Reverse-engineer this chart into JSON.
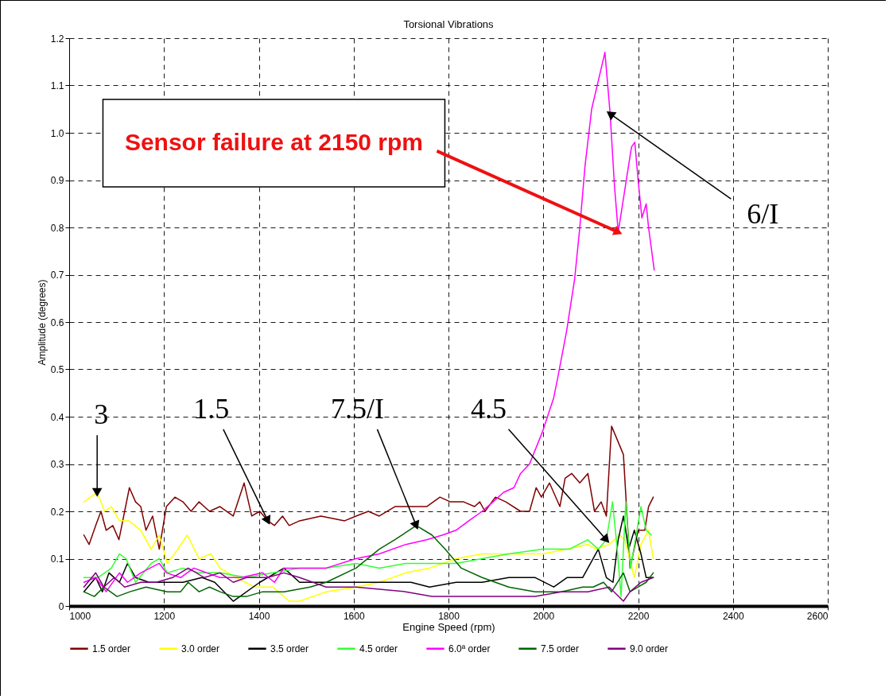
{
  "chart_data": {
    "type": "line",
    "title": "Torsional Vibrations",
    "xlabel": "Engine Speed (rpm)",
    "ylabel": "Amplitude (degrees)",
    "xlim": [
      1000,
      2600
    ],
    "xticks": [
      1000,
      1200,
      1400,
      1600,
      1800,
      2000,
      2200,
      2400,
      2600
    ],
    "ylim": [
      0,
      1.2
    ],
    "yticks": [
      0,
      0.1,
      0.2,
      0.3,
      0.4,
      0.5,
      0.6,
      0.7,
      0.8,
      0.9,
      {
        "value": 1,
        "label": "1.0"
      },
      1.1,
      1.2
    ],
    "grid": true,
    "legend": "bottom",
    "line_style": "solid",
    "marker": "none",
    "series": [
      {
        "name": "1.5 order",
        "color": "#800000",
        "x": [
          1031,
          1042,
          1056,
          1067,
          1078,
          1092,
          1105,
          1127,
          1140,
          1151,
          1162,
          1176,
          1190,
          1205,
          1223,
          1240,
          1257,
          1274,
          1296,
          1318,
          1346,
          1369,
          1385,
          1402,
          1419,
          1433,
          1450,
          1464,
          1486,
          1531,
          1581,
          1605,
          1631,
          1654,
          1687,
          1721,
          1754,
          1782,
          1804,
          1832,
          1855,
          1866,
          1877,
          1899,
          1921,
          1952,
          1971,
          1985,
          1996,
          2013,
          2035,
          2046,
          2060,
          2077,
          2094,
          2108,
          2122,
          2133,
          2144,
          2169,
          2183,
          2200,
          2214,
          2222,
          2232
        ],
        "values": [
          0.15,
          0.13,
          0.17,
          0.2,
          0.16,
          0.17,
          0.14,
          0.25,
          0.22,
          0.21,
          0.16,
          0.19,
          0.12,
          0.21,
          0.23,
          0.22,
          0.2,
          0.22,
          0.2,
          0.21,
          0.19,
          0.26,
          0.19,
          0.2,
          0.18,
          0.17,
          0.19,
          0.17,
          0.18,
          0.19,
          0.18,
          0.19,
          0.2,
          0.19,
          0.21,
          0.21,
          0.21,
          0.23,
          0.22,
          0.22,
          0.21,
          0.22,
          0.2,
          0.23,
          0.22,
          0.2,
          0.2,
          0.25,
          0.23,
          0.26,
          0.21,
          0.27,
          0.28,
          0.26,
          0.28,
          0.2,
          0.22,
          0.19,
          0.38,
          0.32,
          0.08,
          0.16,
          0.16,
          0.21,
          0.23
        ]
      },
      {
        "name": "3.0 order",
        "color": "#ffff00",
        "x": [
          1031,
          1059,
          1075,
          1089,
          1106,
          1126,
          1151,
          1173,
          1190,
          1207,
          1229,
          1249,
          1274,
          1299,
          1318,
          1352,
          1391,
          1430,
          1464,
          1486,
          1542,
          1605,
          1654,
          1710,
          1760,
          1816,
          1871,
          1927,
          1999,
          2050,
          2094,
          2111,
          2139,
          2161,
          2172,
          2192,
          2206,
          2222,
          2232
        ],
        "values": [
          0.22,
          0.24,
          0.2,
          0.21,
          0.18,
          0.18,
          0.16,
          0.12,
          0.15,
          0.09,
          0.12,
          0.15,
          0.1,
          0.11,
          0.08,
          0.06,
          0.04,
          0.04,
          0.01,
          0.01,
          0.03,
          0.04,
          0.05,
          0.07,
          0.08,
          0.1,
          0.11,
          0.11,
          0.11,
          0.12,
          0.13,
          0.12,
          0.13,
          0.15,
          0.14,
          0.06,
          0.13,
          0.16,
          0.1
        ]
      },
      {
        "name": "3.5 order",
        "color": "#000000",
        "x": [
          1031,
          1056,
          1070,
          1084,
          1106,
          1123,
          1140,
          1168,
          1207,
          1240,
          1280,
          1307,
          1346,
          1402,
          1453,
          1486,
          1542,
          1605,
          1665,
          1721,
          1760,
          1816,
          1871,
          1927,
          1983,
          2022,
          2050,
          2083,
          2116,
          2133,
          2147,
          2158,
          2169,
          2180,
          2192,
          2206,
          2217,
          2232
        ],
        "values": [
          0.03,
          0.06,
          0.03,
          0.07,
          0.05,
          0.09,
          0.06,
          0.05,
          0.05,
          0.05,
          0.06,
          0.05,
          0.01,
          0.05,
          0.08,
          0.05,
          0.05,
          0.05,
          0.05,
          0.05,
          0.04,
          0.05,
          0.05,
          0.06,
          0.06,
          0.04,
          0.06,
          0.06,
          0.12,
          0.06,
          0.05,
          0.14,
          0.19,
          0.12,
          0.16,
          0.11,
          0.06,
          0.06
        ]
      },
      {
        "name": "4.5 order",
        "color": "#33ff33",
        "x": [
          1031,
          1061,
          1089,
          1106,
          1120,
          1140,
          1173,
          1190,
          1207,
          1240,
          1274,
          1318,
          1374,
          1430,
          1486,
          1542,
          1605,
          1654,
          1710,
          1760,
          1816,
          1871,
          1927,
          1999,
          2055,
          2094,
          2116,
          2133,
          2146,
          2156,
          2164,
          2174,
          2184,
          2206,
          2217,
          2228
        ],
        "values": [
          0.06,
          0.06,
          0.08,
          0.11,
          0.1,
          0.05,
          0.09,
          0.1,
          0.07,
          0.08,
          0.07,
          0.07,
          0.06,
          0.07,
          0.08,
          0.08,
          0.09,
          0.08,
          0.09,
          0.09,
          0.09,
          0.1,
          0.11,
          0.12,
          0.12,
          0.14,
          0.12,
          0.14,
          0.22,
          0.12,
          0.02,
          0.22,
          0.08,
          0.21,
          0.16,
          0.15
        ]
      },
      {
        "name": "6.0ª order",
        "color": "#ff00ff",
        "x": [
          1031,
          1056,
          1078,
          1106,
          1123,
          1151,
          1190,
          1205,
          1235,
          1263,
          1290,
          1318,
          1363,
          1408,
          1433,
          1453,
          1486,
          1542,
          1605,
          1654,
          1710,
          1754,
          1788,
          1816,
          1843,
          1871,
          1894,
          1916,
          1938,
          1952,
          1971,
          1999,
          2022,
          2030,
          2049,
          2066,
          2077,
          2088,
          2102,
          2116,
          2130,
          2141,
          2150,
          2158,
          2172,
          2186,
          2193,
          2200,
          2208,
          2217,
          2222,
          2234
        ],
        "values": [
          0.05,
          0.06,
          0.03,
          0.07,
          0.05,
          0.07,
          0.09,
          0.07,
          0.06,
          0.08,
          0.07,
          0.06,
          0.06,
          0.07,
          0.05,
          0.08,
          0.08,
          0.08,
          0.1,
          0.11,
          0.13,
          0.14,
          0.15,
          0.16,
          0.18,
          0.2,
          0.22,
          0.24,
          0.25,
          0.28,
          0.3,
          0.37,
          0.44,
          0.48,
          0.58,
          0.69,
          0.8,
          0.93,
          1.05,
          1.11,
          1.17,
          1.04,
          0.89,
          0.79,
          0.88,
          0.97,
          0.98,
          0.9,
          0.82,
          0.85,
          0.8,
          0.71
        ]
      },
      {
        "name": "7.5 order",
        "color": "#006400",
        "x": [
          1031,
          1053,
          1073,
          1101,
          1128,
          1162,
          1207,
          1235,
          1251,
          1274,
          1296,
          1318,
          1346,
          1374,
          1408,
          1453,
          1508,
          1542,
          1605,
          1654,
          1687,
          1732,
          1765,
          1793,
          1827,
          1871,
          1927,
          1983,
          2038,
          2083,
          2105,
          2127,
          2144,
          2169,
          2183,
          2200,
          2217,
          2232
        ],
        "values": [
          0.03,
          0.02,
          0.04,
          0.02,
          0.03,
          0.04,
          0.03,
          0.03,
          0.05,
          0.03,
          0.04,
          0.03,
          0.02,
          0.02,
          0.03,
          0.03,
          0.04,
          0.05,
          0.08,
          0.12,
          0.14,
          0.17,
          0.15,
          0.12,
          0.08,
          0.06,
          0.04,
          0.03,
          0.03,
          0.04,
          0.04,
          0.05,
          0.03,
          0.07,
          0.03,
          0.04,
          0.05,
          0.07
        ]
      },
      {
        "name": "9.0 order",
        "color": "#800080",
        "x": [
          1031,
          1056,
          1073,
          1095,
          1117,
          1151,
          1184,
          1218,
          1251,
          1285,
          1318,
          1346,
          1374,
          1419,
          1453,
          1486,
          1542,
          1605,
          1710,
          1765,
          1816,
          1871,
          1983,
          2038,
          2094,
          2139,
          2169,
          2183,
          2206,
          2232
        ],
        "values": [
          0.04,
          0.07,
          0.04,
          0.06,
          0.04,
          0.05,
          0.05,
          0.06,
          0.08,
          0.06,
          0.07,
          0.05,
          0.06,
          0.06,
          0.07,
          0.06,
          0.04,
          0.04,
          0.03,
          0.02,
          0.02,
          0.02,
          0.02,
          0.03,
          0.03,
          0.04,
          0.01,
          0.03,
          0.05,
          0.06
        ]
      }
    ],
    "annotations": [
      {
        "text": "Sensor failure at 2150 rpm",
        "x": 2158,
        "y": 0.79
      },
      {
        "text": "6/I",
        "x": 2141,
        "y": 1.04
      },
      {
        "text": "3",
        "x": 1059,
        "y": 0.24
      },
      {
        "text": "1.5",
        "x": 1419,
        "y": 0.18
      },
      {
        "text": "7.5/I",
        "x": 1732,
        "y": 0.17
      },
      {
        "text": "4.5",
        "x": 2133,
        "y": 0.14
      }
    ]
  }
}
